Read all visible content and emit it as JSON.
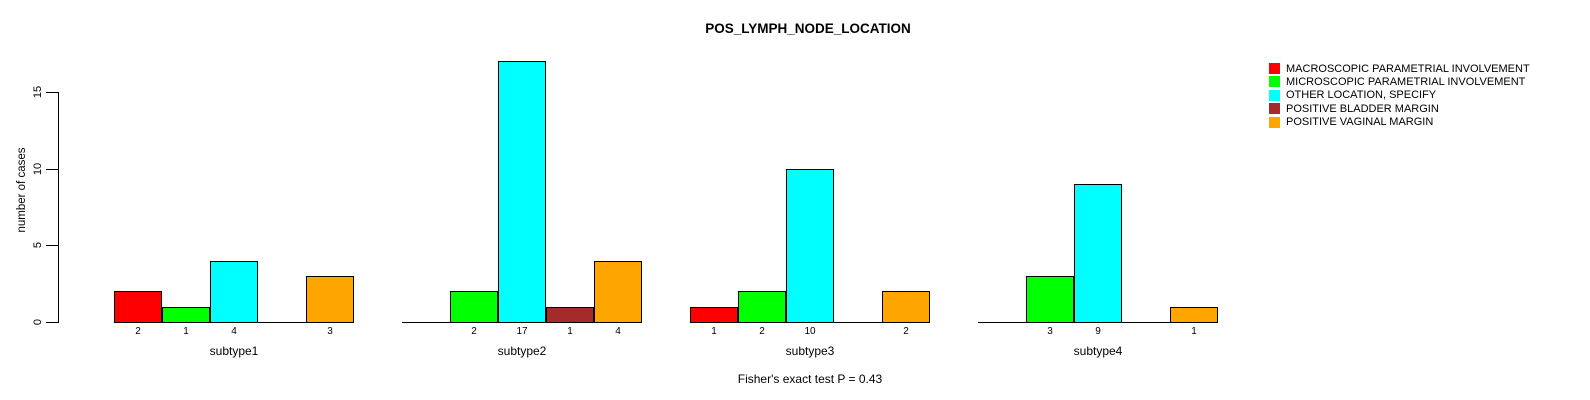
{
  "chart_data": {
    "type": "bar",
    "title": "POS_LYMPH_NODE_LOCATION",
    "ylabel": "number of cases",
    "xlabel": "",
    "footnote": "Fisher's exact test P = 0.43",
    "yticks": [
      0,
      5,
      10,
      15
    ],
    "ylim": [
      0,
      17
    ],
    "grid": false,
    "legend_position": "right",
    "bar_value_labels": true,
    "categories": [
      "subtype1",
      "subtype2",
      "subtype3",
      "subtype4"
    ],
    "series": [
      {
        "name": "MACROSCOPIC PARAMETRIAL INVOLVEMENT",
        "color": "#ff0000",
        "values": [
          2,
          0,
          1,
          0
        ]
      },
      {
        "name": "MICROSCOPIC PARAMETRIAL INVOLVEMENT",
        "color": "#00ff00",
        "values": [
          1,
          2,
          2,
          3
        ]
      },
      {
        "name": "OTHER LOCATION, SPECIFY",
        "color": "#00ffff",
        "values": [
          4,
          17,
          10,
          9
        ]
      },
      {
        "name": "POSITIVE BLADDER MARGIN",
        "color": "#a52a2a",
        "values": [
          0,
          1,
          0,
          0
        ]
      },
      {
        "name": "POSITIVE VAGINAL MARGIN",
        "color": "#ffa500",
        "values": [
          3,
          4,
          2,
          1
        ]
      }
    ]
  },
  "colors": {
    "axis": "#000000",
    "background": "#ffffff",
    "text": "#000000"
  }
}
